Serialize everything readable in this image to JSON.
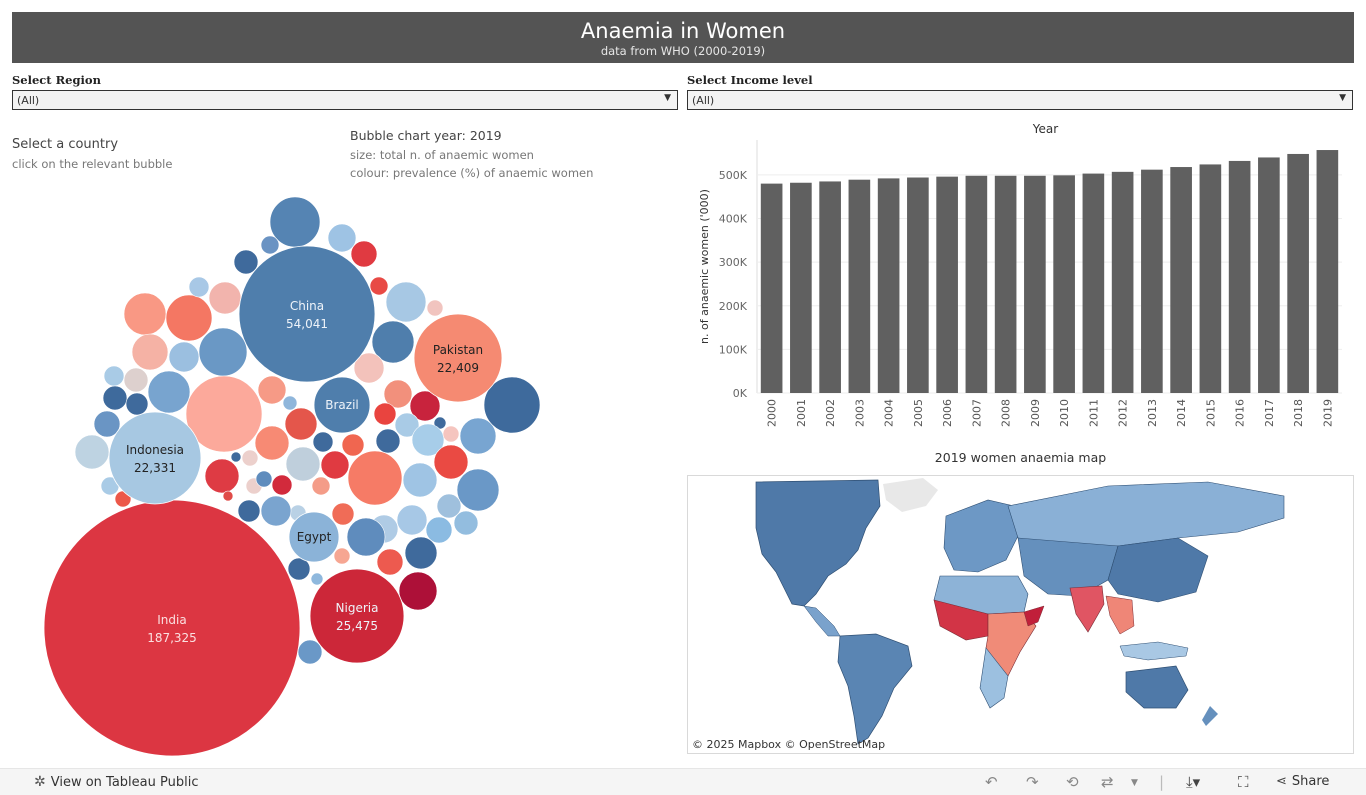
{
  "header": {
    "title": "Anaemia in Women",
    "subtitle": "data from WHO (2000-2019)"
  },
  "filters": {
    "region": {
      "label": "Select  Region",
      "value": "(All)"
    },
    "income": {
      "label": "Select  Income  level",
      "value": "(All)"
    }
  },
  "bubble_panel": {
    "select_title": "Select a country",
    "select_hint": "click on the relevant bubble",
    "chart_title": "Bubble chart year: 2019",
    "size_note": "size: total n. of anaemic women",
    "colour_note": "colour: prevalence (%) of anaemic women"
  },
  "map": {
    "title": "2019 women anaemia map",
    "attribution_mapbox": "© 2025 Mapbox",
    "attribution_osm": "© OpenStreetMap"
  },
  "footer": {
    "view_label": "View on Tableau Public",
    "share_label": "Share"
  },
  "chart_data": [
    {
      "type": "bar",
      "title": "Year",
      "xlabel": "",
      "ylabel": "n. of anaemic women ('000)",
      "categories": [
        "2000",
        "2001",
        "2002",
        "2003",
        "2004",
        "2005",
        "2006",
        "2007",
        "2008",
        "2009",
        "2010",
        "2011",
        "2012",
        "2013",
        "2014",
        "2015",
        "2016",
        "2017",
        "2018",
        "2019"
      ],
      "values": [
        480,
        482,
        485,
        489,
        492,
        494,
        496,
        498,
        498,
        498,
        499,
        503,
        507,
        512,
        518,
        524,
        532,
        540,
        548,
        557
      ],
      "ylim": [
        0,
        580
      ],
      "yticks": [
        0,
        100,
        200,
        300,
        400,
        500
      ],
      "ytick_labels": [
        "0K",
        "100K",
        "200K",
        "300K",
        "400K",
        "500K"
      ],
      "grid": true,
      "bar_color": "#606060"
    },
    {
      "type": "bubble",
      "labeled": [
        {
          "name": "India",
          "value": "187,325",
          "color": "#dc3642"
        },
        {
          "name": "China",
          "value": "54,041",
          "color": "#4f7eac"
        },
        {
          "name": "Nigeria",
          "value": "25,475",
          "color": "#cc2739"
        },
        {
          "name": "Pakistan",
          "value": "22,409",
          "color": "#f58a72"
        },
        {
          "name": "Indonesia",
          "value": "22,331",
          "color": "#a7c8e2"
        },
        {
          "name": "Brazil",
          "value": "",
          "color": "#4f7eac"
        },
        {
          "name": "Egypt",
          "value": "",
          "color": "#8bb3d8"
        }
      ]
    }
  ]
}
